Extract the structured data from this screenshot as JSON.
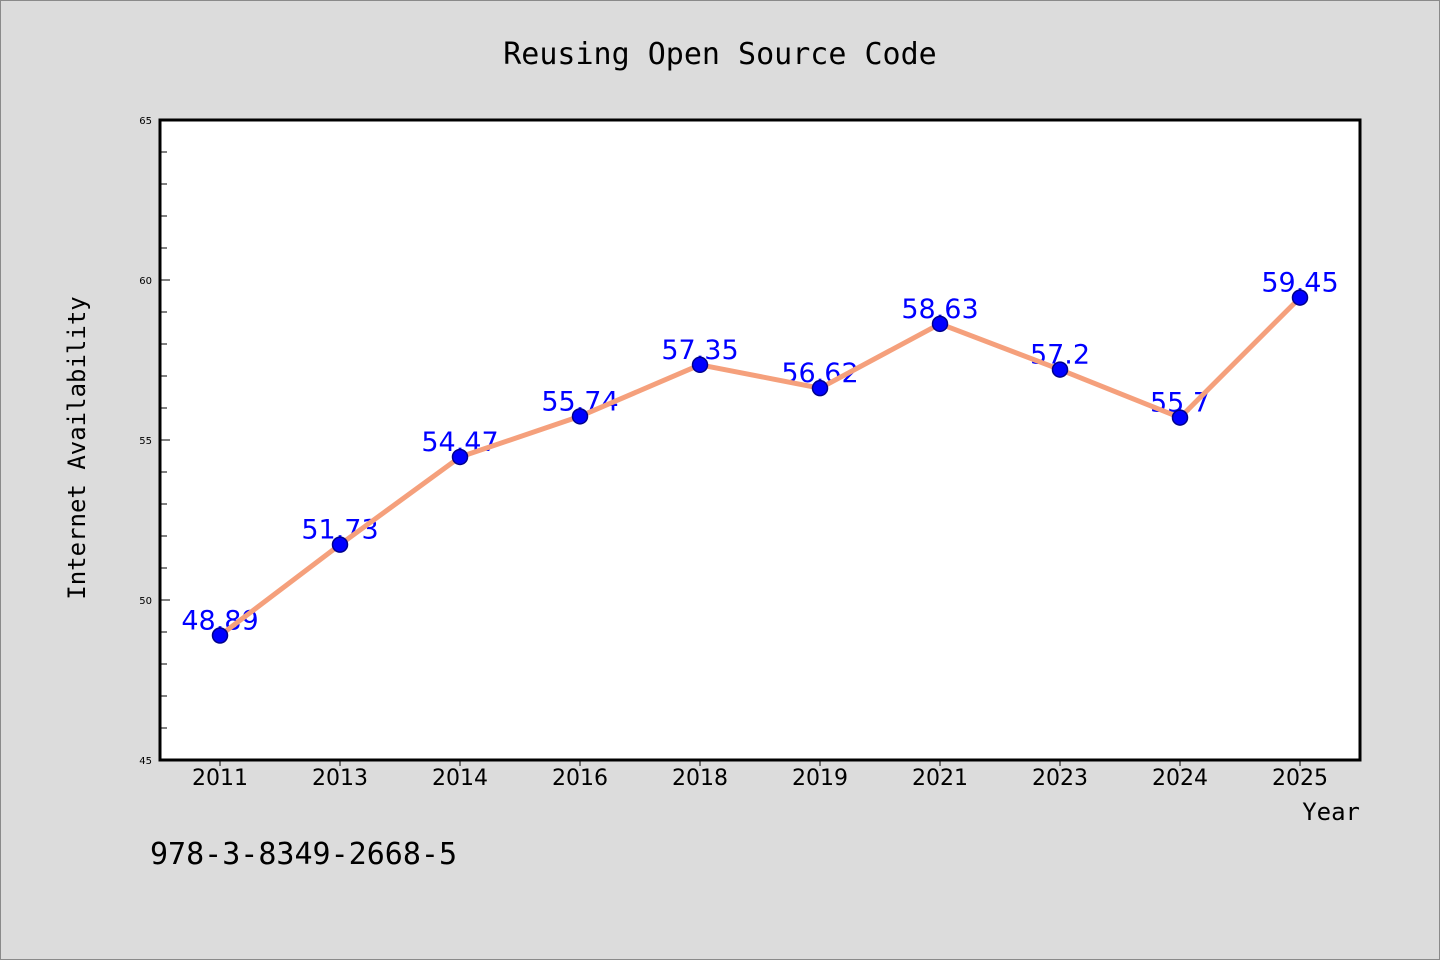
{
  "chart_data": {
    "type": "line",
    "title": "Reusing Open Source Code",
    "xlabel": "Year",
    "ylabel": "Internet Availability",
    "categories": [
      "2011",
      "2013",
      "2014",
      "2016",
      "2018",
      "2019",
      "2021",
      "2023",
      "2024",
      "2025"
    ],
    "values": [
      48.89,
      51.73,
      54.47,
      55.74,
      57.35,
      56.62,
      58.63,
      57.2,
      55.7,
      59.45
    ],
    "ylim": [
      45,
      65
    ],
    "yticks": [
      45,
      50,
      55,
      60,
      65
    ],
    "data_labels": true,
    "markers": "circle",
    "grid": false,
    "colors": {
      "line": "#f5a07c",
      "marker": "#0000ff",
      "marker_edge": "#00008b",
      "data_label": "#0000ff",
      "background": "#dcdcdc",
      "plot_background": "#ffffff"
    }
  },
  "annotation": "978-3-8349-2668-5"
}
